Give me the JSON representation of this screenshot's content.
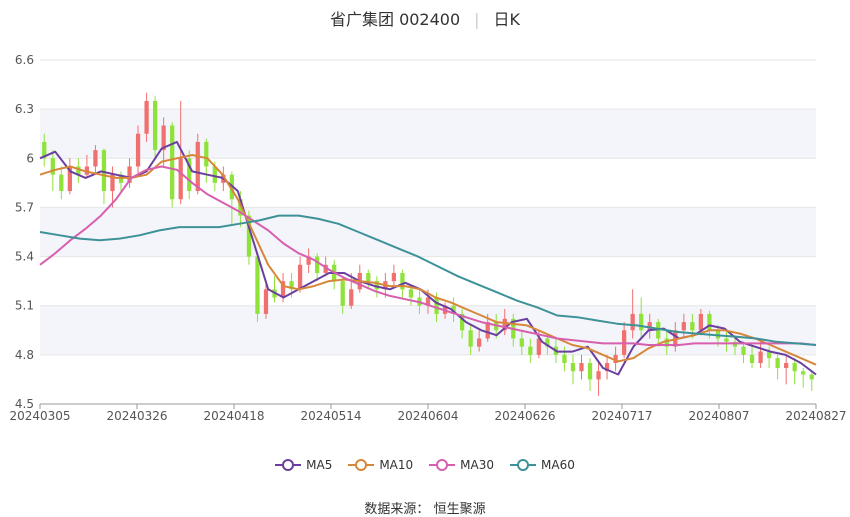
{
  "header": {
    "stock_name": "省广集团",
    "stock_code": "002400",
    "period": "日K"
  },
  "source": {
    "label": "数据来源：",
    "name": "恒生聚源"
  },
  "chart_data": {
    "type": "candlestick",
    "x_ticks": [
      "20240305",
      "20240326",
      "20240418",
      "20240514",
      "20240604",
      "20240626",
      "20240717",
      "20240807",
      "20240827"
    ],
    "y_ticks": [
      4.5,
      4.8,
      5.1,
      5.4,
      5.7,
      6.0,
      6.3,
      6.6
    ],
    "y_tick_labels": [
      "4.5",
      "4.8",
      "5.1",
      "5.4",
      "5.7",
      "6",
      "6.3",
      "6.6"
    ],
    "ylim": [
      4.5,
      6.6
    ],
    "colors": {
      "up": "#f07070",
      "down": "#8ee23a",
      "band": "#f4f5fb",
      "grid": "#e6e6e6"
    },
    "series": [
      {
        "name": "MA5",
        "color": "#6a3fa0",
        "values": [
          6.0,
          6.04,
          5.92,
          5.88,
          5.92,
          5.9,
          5.88,
          5.92,
          6.06,
          6.1,
          5.92,
          5.9,
          5.88,
          5.8,
          5.5,
          5.2,
          5.15,
          5.2,
          5.25,
          5.3,
          5.3,
          5.25,
          5.22,
          5.2,
          5.24,
          5.2,
          5.12,
          5.08,
          5.0,
          4.95,
          4.92,
          5.0,
          5.02,
          4.88,
          4.82,
          4.82,
          4.85,
          4.72,
          4.68,
          4.85,
          4.95,
          4.96,
          4.9,
          4.92,
          4.98,
          4.96,
          4.88,
          4.85,
          4.82,
          4.8,
          4.75,
          4.68
        ]
      },
      {
        "name": "MA10",
        "color": "#d7873a",
        "values": [
          5.9,
          5.93,
          5.95,
          5.92,
          5.9,
          5.88,
          5.88,
          5.9,
          5.98,
          6.0,
          6.02,
          6.0,
          5.9,
          5.75,
          5.55,
          5.35,
          5.22,
          5.2,
          5.22,
          5.25,
          5.26,
          5.25,
          5.24,
          5.22,
          5.22,
          5.2,
          5.15,
          5.12,
          5.08,
          5.04,
          5.0,
          4.99,
          4.98,
          4.94,
          4.9,
          4.86,
          4.84,
          4.8,
          4.76,
          4.78,
          4.84,
          4.88,
          4.9,
          4.92,
          4.95,
          4.95,
          4.93,
          4.9,
          4.86,
          4.82,
          4.78,
          4.74
        ]
      },
      {
        "name": "MA30",
        "color": "#d75fae",
        "values": [
          5.35,
          5.42,
          5.5,
          5.57,
          5.65,
          5.75,
          5.88,
          5.93,
          5.95,
          5.93,
          5.85,
          5.78,
          5.73,
          5.68,
          5.62,
          5.56,
          5.48,
          5.42,
          5.38,
          5.32,
          5.27,
          5.23,
          5.19,
          5.16,
          5.14,
          5.12,
          5.09,
          5.06,
          5.03,
          5.0,
          4.98,
          4.96,
          4.94,
          4.92,
          4.9,
          4.89,
          4.88,
          4.87,
          4.87,
          4.87,
          4.86,
          4.86,
          4.86,
          4.87,
          4.87,
          4.87,
          4.87,
          4.87,
          4.87,
          4.87,
          4.87,
          4.86
        ]
      },
      {
        "name": "MA60",
        "color": "#3d9298",
        "values": [
          5.55,
          5.53,
          5.51,
          5.5,
          5.51,
          5.53,
          5.56,
          5.58,
          5.58,
          5.58,
          5.6,
          5.62,
          5.65,
          5.65,
          5.63,
          5.6,
          5.55,
          5.5,
          5.45,
          5.4,
          5.34,
          5.28,
          5.23,
          5.18,
          5.13,
          5.09,
          5.04,
          5.03,
          5.01,
          4.99,
          4.98,
          4.96,
          4.94,
          4.93,
          4.92,
          4.91,
          4.9,
          4.88,
          4.87,
          4.86
        ]
      }
    ],
    "candles": [
      [
        6.1,
        6.0,
        6.15,
        5.95
      ],
      [
        6.0,
        5.9,
        6.05,
        5.8
      ],
      [
        5.9,
        5.8,
        5.95,
        5.75
      ],
      [
        5.8,
        5.95,
        6.0,
        5.78
      ],
      [
        5.95,
        5.9,
        6.0,
        5.85
      ],
      [
        5.9,
        5.95,
        6.02,
        5.88
      ],
      [
        5.95,
        6.05,
        6.08,
        5.9
      ],
      [
        6.05,
        5.8,
        6.06,
        5.72
      ],
      [
        5.8,
        5.9,
        5.95,
        5.7
      ],
      [
        5.9,
        5.85,
        5.92,
        5.8
      ],
      [
        5.85,
        5.95,
        6.0,
        5.82
      ],
      [
        5.95,
        6.15,
        6.2,
        5.9
      ],
      [
        6.15,
        6.35,
        6.4,
        6.1
      ],
      [
        6.35,
        6.05,
        6.38,
        6.0
      ],
      [
        6.05,
        6.2,
        6.25,
        5.95
      ],
      [
        6.2,
        5.75,
        6.22,
        5.7
      ],
      [
        5.75,
        6.0,
        6.35,
        5.72
      ],
      [
        6.0,
        5.8,
        6.05,
        5.75
      ],
      [
        5.8,
        6.1,
        6.15,
        5.78
      ],
      [
        6.1,
        5.95,
        6.12,
        5.85
      ],
      [
        5.95,
        5.85,
        5.98,
        5.8
      ],
      [
        5.85,
        5.9,
        5.95,
        5.8
      ],
      [
        5.9,
        5.75,
        5.92,
        5.6
      ],
      [
        5.75,
        5.65,
        5.8,
        5.58
      ],
      [
        5.65,
        5.4,
        5.68,
        5.35
      ],
      [
        5.4,
        5.05,
        5.42,
        5.0
      ],
      [
        5.05,
        5.2,
        5.25,
        5.02
      ],
      [
        5.2,
        5.15,
        5.28,
        5.12
      ],
      [
        5.15,
        5.25,
        5.3,
        5.12
      ],
      [
        5.25,
        5.2,
        5.3,
        5.15
      ],
      [
        5.2,
        5.35,
        5.4,
        5.18
      ],
      [
        5.35,
        5.4,
        5.45,
        5.3
      ],
      [
        5.4,
        5.3,
        5.42,
        5.25
      ],
      [
        5.3,
        5.35,
        5.4,
        5.28
      ],
      [
        5.35,
        5.25,
        5.38,
        5.2
      ],
      [
        5.25,
        5.1,
        5.28,
        5.05
      ],
      [
        5.1,
        5.2,
        5.3,
        5.08
      ],
      [
        5.2,
        5.3,
        5.35,
        5.18
      ],
      [
        5.3,
        5.25,
        5.32,
        5.2
      ],
      [
        5.25,
        5.2,
        5.28,
        5.15
      ],
      [
        5.2,
        5.25,
        5.3,
        5.15
      ],
      [
        5.25,
        5.3,
        5.35,
        5.22
      ],
      [
        5.3,
        5.2,
        5.32,
        5.15
      ],
      [
        5.2,
        5.15,
        5.22,
        5.1
      ],
      [
        5.15,
        5.1,
        5.2,
        5.05
      ],
      [
        5.1,
        5.15,
        5.2,
        5.05
      ],
      [
        5.15,
        5.05,
        5.18,
        5.0
      ],
      [
        5.05,
        5.1,
        5.12,
        5.02
      ],
      [
        5.1,
        5.05,
        5.15,
        5.0
      ],
      [
        5.05,
        4.95,
        5.08,
        4.9
      ],
      [
        4.95,
        4.85,
        4.98,
        4.8
      ],
      [
        4.85,
        4.9,
        4.95,
        4.82
      ],
      [
        4.9,
        5.0,
        5.05,
        4.88
      ],
      [
        5.0,
        4.95,
        5.05,
        4.9
      ],
      [
        4.95,
        5.02,
        5.08,
        4.92
      ],
      [
        5.02,
        4.9,
        5.05,
        4.85
      ],
      [
        4.9,
        4.85,
        4.95,
        4.8
      ],
      [
        4.85,
        4.8,
        4.9,
        4.75
      ],
      [
        4.8,
        4.9,
        4.95,
        4.78
      ],
      [
        4.9,
        4.85,
        4.92,
        4.8
      ],
      [
        4.85,
        4.8,
        4.9,
        4.75
      ],
      [
        4.8,
        4.75,
        4.85,
        4.7
      ],
      [
        4.75,
        4.7,
        4.8,
        4.62
      ],
      [
        4.7,
        4.75,
        4.8,
        4.65
      ],
      [
        4.75,
        4.65,
        4.78,
        4.58
      ],
      [
        4.65,
        4.7,
        4.75,
        4.55
      ],
      [
        4.7,
        4.75,
        4.8,
        4.65
      ],
      [
        4.75,
        4.8,
        4.85,
        4.7
      ],
      [
        4.8,
        4.95,
        5.0,
        4.78
      ],
      [
        4.95,
        5.05,
        5.2,
        4.9
      ],
      [
        5.05,
        4.95,
        5.15,
        4.9
      ],
      [
        4.95,
        5.0,
        5.05,
        4.9
      ],
      [
        5.0,
        4.9,
        5.02,
        4.85
      ],
      [
        4.9,
        4.85,
        4.95,
        4.8
      ],
      [
        4.85,
        4.95,
        5.0,
        4.82
      ],
      [
        4.95,
        5.0,
        5.05,
        4.9
      ],
      [
        5.0,
        4.95,
        5.05,
        4.9
      ],
      [
        4.95,
        5.05,
        5.08,
        4.92
      ],
      [
        5.05,
        4.95,
        5.07,
        4.9
      ],
      [
        4.95,
        4.9,
        4.98,
        4.85
      ],
      [
        4.9,
        4.88,
        4.95,
        4.82
      ],
      [
        4.88,
        4.85,
        4.92,
        4.8
      ],
      [
        4.85,
        4.8,
        4.88,
        4.75
      ],
      [
        4.8,
        4.75,
        4.85,
        4.72
      ],
      [
        4.75,
        4.82,
        4.88,
        4.72
      ],
      [
        4.82,
        4.78,
        4.85,
        4.72
      ],
      [
        4.78,
        4.72,
        4.8,
        4.65
      ],
      [
        4.72,
        4.75,
        4.8,
        4.62
      ],
      [
        4.75,
        4.7,
        4.78,
        4.62
      ],
      [
        4.7,
        4.68,
        4.72,
        4.6
      ],
      [
        4.68,
        4.65,
        4.7,
        4.58
      ]
    ]
  }
}
